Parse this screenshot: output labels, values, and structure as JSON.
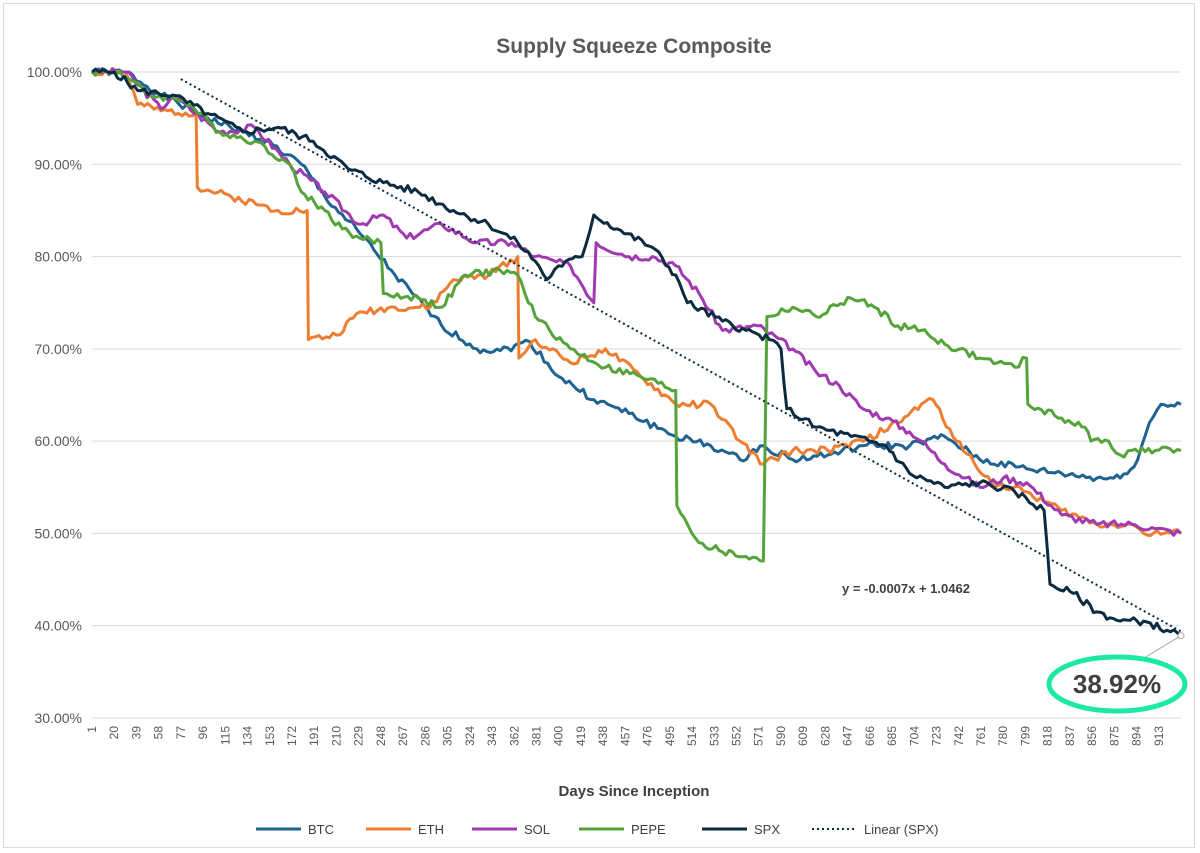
{
  "chart_data": {
    "type": "line",
    "title": "Supply Squeeze Composite",
    "xlabel": "Days Since Inception",
    "ylabel": "",
    "ylim": [
      0.3,
      1.0
    ],
    "xlim": [
      1,
      932
    ],
    "yticks": [
      1.0,
      0.9,
      0.8,
      0.7,
      0.6,
      0.5,
      0.4,
      0.3
    ],
    "ytick_labels": [
      "100.00%",
      "90.00%",
      "80.00%",
      "70.00%",
      "60.00%",
      "50.00%",
      "40.00%",
      "30.00%"
    ],
    "xtick_labels": [
      "1",
      "20",
      "39",
      "58",
      "77",
      "96",
      "115",
      "134",
      "153",
      "172",
      "191",
      "210",
      "229",
      "248",
      "267",
      "286",
      "305",
      "324",
      "343",
      "362",
      "381",
      "400",
      "419",
      "438",
      "457",
      "476",
      "495",
      "514",
      "533",
      "552",
      "571",
      "590",
      "609",
      "628",
      "647",
      "666",
      "685",
      "704",
      "723",
      "742",
      "761",
      "780",
      "799",
      "818",
      "837",
      "856",
      "875",
      "894",
      "913"
    ],
    "gridlines": "horizontal",
    "legend_position": "bottom",
    "series": [
      {
        "name": "BTC",
        "color": "#1f6391",
        "points": [
          [
            1,
            1.0
          ],
          [
            30,
            1.0
          ],
          [
            60,
            0.975
          ],
          [
            100,
            0.95
          ],
          [
            150,
            0.925
          ],
          [
            180,
            0.9
          ],
          [
            200,
            0.865
          ],
          [
            230,
            0.825
          ],
          [
            260,
            0.78
          ],
          [
            300,
            0.725
          ],
          [
            330,
            0.7
          ],
          [
            350,
            0.698
          ],
          [
            375,
            0.708
          ],
          [
            400,
            0.67
          ],
          [
            430,
            0.645
          ],
          [
            460,
            0.63
          ],
          [
            500,
            0.605
          ],
          [
            530,
            0.595
          ],
          [
            555,
            0.58
          ],
          [
            575,
            0.595
          ],
          [
            600,
            0.58
          ],
          [
            630,
            0.585
          ],
          [
            660,
            0.595
          ],
          [
            700,
            0.595
          ],
          [
            730,
            0.605
          ],
          [
            760,
            0.58
          ],
          [
            800,
            0.57
          ],
          [
            830,
            0.565
          ],
          [
            860,
            0.56
          ],
          [
            880,
            0.56
          ],
          [
            895,
            0.58
          ],
          [
            905,
            0.62
          ],
          [
            915,
            0.64
          ],
          [
            932,
            0.64
          ]
        ]
      },
      {
        "name": "ETH",
        "color": "#ed7d31",
        "points": [
          [
            1,
            1.0
          ],
          [
            30,
            1.0
          ],
          [
            40,
            0.965
          ],
          [
            60,
            0.958
          ],
          [
            90,
            0.955
          ],
          [
            91,
            0.875
          ],
          [
            120,
            0.865
          ],
          [
            160,
            0.85
          ],
          [
            185,
            0.85
          ],
          [
            186,
            0.71
          ],
          [
            210,
            0.715
          ],
          [
            230,
            0.74
          ],
          [
            260,
            0.745
          ],
          [
            290,
            0.745
          ],
          [
            310,
            0.775
          ],
          [
            340,
            0.78
          ],
          [
            365,
            0.8
          ],
          [
            366,
            0.69
          ],
          [
            380,
            0.71
          ],
          [
            410,
            0.685
          ],
          [
            440,
            0.7
          ],
          [
            470,
            0.67
          ],
          [
            500,
            0.64
          ],
          [
            530,
            0.64
          ],
          [
            555,
            0.6
          ],
          [
            575,
            0.575
          ],
          [
            600,
            0.59
          ],
          [
            630,
            0.59
          ],
          [
            660,
            0.6
          ],
          [
            690,
            0.62
          ],
          [
            710,
            0.64
          ],
          [
            720,
            0.645
          ],
          [
            740,
            0.6
          ],
          [
            770,
            0.555
          ],
          [
            800,
            0.545
          ],
          [
            830,
            0.525
          ],
          [
            860,
            0.51
          ],
          [
            890,
            0.51
          ],
          [
            900,
            0.5
          ],
          [
            932,
            0.5
          ]
        ]
      },
      {
        "name": "SOL",
        "color": "#a03ab1",
        "points": [
          [
            1,
            1.0
          ],
          [
            30,
            1.0
          ],
          [
            60,
            0.96
          ],
          [
            70,
            0.975
          ],
          [
            110,
            0.935
          ],
          [
            140,
            0.94
          ],
          [
            170,
            0.9
          ],
          [
            200,
            0.87
          ],
          [
            230,
            0.835
          ],
          [
            250,
            0.845
          ],
          [
            270,
            0.82
          ],
          [
            300,
            0.835
          ],
          [
            330,
            0.815
          ],
          [
            360,
            0.815
          ],
          [
            380,
            0.8
          ],
          [
            410,
            0.79
          ],
          [
            430,
            0.75
          ],
          [
            432,
            0.815
          ],
          [
            460,
            0.8
          ],
          [
            480,
            0.8
          ],
          [
            500,
            0.79
          ],
          [
            520,
            0.76
          ],
          [
            540,
            0.72
          ],
          [
            570,
            0.725
          ],
          [
            600,
            0.7
          ],
          [
            620,
            0.675
          ],
          [
            640,
            0.66
          ],
          [
            660,
            0.635
          ],
          [
            680,
            0.625
          ],
          [
            700,
            0.61
          ],
          [
            710,
            0.6
          ],
          [
            730,
            0.575
          ],
          [
            760,
            0.55
          ],
          [
            780,
            0.56
          ],
          [
            800,
            0.555
          ],
          [
            830,
            0.52
          ],
          [
            860,
            0.51
          ],
          [
            890,
            0.51
          ],
          [
            910,
            0.505
          ],
          [
            932,
            0.5
          ]
        ]
      },
      {
        "name": "PEPE",
        "color": "#56a33a",
        "points": [
          [
            1,
            1.0
          ],
          [
            25,
            1.0
          ],
          [
            50,
            0.975
          ],
          [
            80,
            0.97
          ],
          [
            110,
            0.935
          ],
          [
            140,
            0.925
          ],
          [
            170,
            0.9
          ],
          [
            180,
            0.87
          ],
          [
            200,
            0.85
          ],
          [
            215,
            0.83
          ],
          [
            230,
            0.82
          ],
          [
            248,
            0.815
          ],
          [
            250,
            0.76
          ],
          [
            280,
            0.755
          ],
          [
            300,
            0.745
          ],
          [
            320,
            0.78
          ],
          [
            350,
            0.785
          ],
          [
            365,
            0.78
          ],
          [
            380,
            0.735
          ],
          [
            410,
            0.7
          ],
          [
            440,
            0.68
          ],
          [
            470,
            0.67
          ],
          [
            500,
            0.655
          ],
          [
            501,
            0.53
          ],
          [
            520,
            0.49
          ],
          [
            540,
            0.48
          ],
          [
            560,
            0.475
          ],
          [
            575,
            0.47
          ],
          [
            578,
            0.735
          ],
          [
            600,
            0.745
          ],
          [
            620,
            0.735
          ],
          [
            650,
            0.755
          ],
          [
            670,
            0.745
          ],
          [
            690,
            0.725
          ],
          [
            710,
            0.72
          ],
          [
            730,
            0.705
          ],
          [
            760,
            0.69
          ],
          [
            790,
            0.68
          ],
          [
            800,
            0.69
          ],
          [
            801,
            0.64
          ],
          [
            830,
            0.625
          ],
          [
            850,
            0.615
          ],
          [
            855,
            0.6
          ],
          [
            870,
            0.6
          ],
          [
            880,
            0.585
          ],
          [
            890,
            0.59
          ],
          [
            910,
            0.59
          ],
          [
            932,
            0.59
          ]
        ]
      },
      {
        "name": "SPX",
        "color": "#0b2b40",
        "points": [
          [
            1,
            1.0
          ],
          [
            20,
            1.0
          ],
          [
            40,
            0.98
          ],
          [
            70,
            0.975
          ],
          [
            100,
            0.955
          ],
          [
            130,
            0.935
          ],
          [
            160,
            0.94
          ],
          [
            190,
            0.925
          ],
          [
            220,
            0.895
          ],
          [
            250,
            0.88
          ],
          [
            280,
            0.87
          ],
          [
            310,
            0.85
          ],
          [
            340,
            0.835
          ],
          [
            365,
            0.815
          ],
          [
            380,
            0.795
          ],
          [
            390,
            0.775
          ],
          [
            400,
            0.79
          ],
          [
            420,
            0.8
          ],
          [
            430,
            0.845
          ],
          [
            450,
            0.83
          ],
          [
            480,
            0.81
          ],
          [
            500,
            0.78
          ],
          [
            510,
            0.75
          ],
          [
            540,
            0.73
          ],
          [
            560,
            0.72
          ],
          [
            580,
            0.71
          ],
          [
            590,
            0.7
          ],
          [
            595,
            0.635
          ],
          [
            620,
            0.615
          ],
          [
            650,
            0.605
          ],
          [
            680,
            0.595
          ],
          [
            700,
            0.565
          ],
          [
            730,
            0.55
          ],
          [
            760,
            0.555
          ],
          [
            790,
            0.545
          ],
          [
            815,
            0.525
          ],
          [
            820,
            0.445
          ],
          [
            840,
            0.435
          ],
          [
            860,
            0.415
          ],
          [
            880,
            0.405
          ],
          [
            900,
            0.405
          ],
          [
            920,
            0.395
          ],
          [
            932,
            0.3892
          ]
        ]
      }
    ],
    "trendline": {
      "name": "Linear (SPX)",
      "label": "y = -0.0007x + 1.0462",
      "slope": -0.0007,
      "intercept": 1.0462,
      "x_start": 77,
      "x_end": 932,
      "color": "#0b2b40"
    },
    "callout": {
      "label": "38.92%",
      "value": 0.3892,
      "x": 932,
      "ring_color": "#1de9a3"
    }
  }
}
